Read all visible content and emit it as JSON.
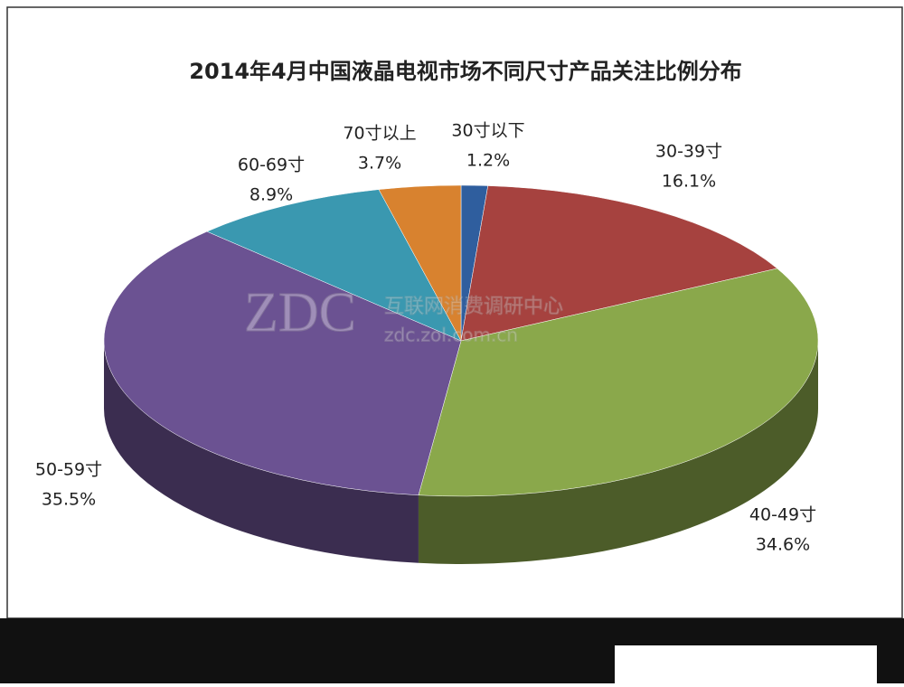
{
  "chart_data": {
    "type": "pie3d",
    "title": "2014年4月中国液晶电视市场不同尺寸产品关注比例分布",
    "categories": [
      "30寸以下",
      "30-39寸",
      "40-49寸",
      "50-59寸",
      "60-69寸",
      "70寸以上"
    ],
    "values": [
      1.2,
      16.1,
      34.6,
      35.5,
      8.9,
      3.7
    ],
    "value_labels": [
      "1.2%",
      "16.1%",
      "34.6%",
      "35.5%",
      "8.9%",
      "3.7%"
    ],
    "colors": [
      "#2f5e9e",
      "#a6423f",
      "#8aa84b",
      "#6b5292",
      "#3a98b0",
      "#d8822f"
    ],
    "watermark": {
      "logo": "ZDC",
      "name": "互联网消费调研中心",
      "url": "zdc.zol.com.cn"
    }
  }
}
